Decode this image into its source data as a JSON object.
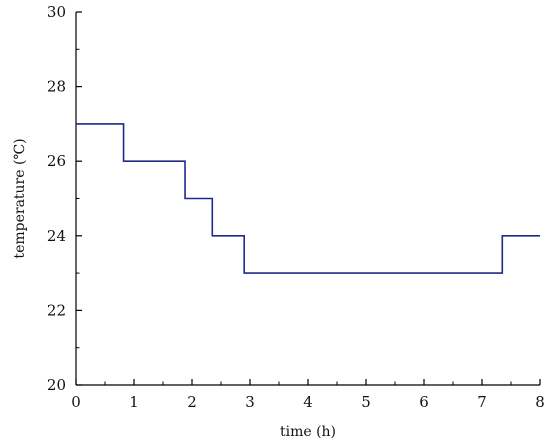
{
  "chart_data": {
    "type": "line",
    "step": true,
    "title": "",
    "xlabel": "time (h)",
    "ylabel": "temperature (℃)",
    "xlim": [
      0,
      8
    ],
    "ylim": [
      20,
      30
    ],
    "xticks": [
      0,
      1,
      2,
      3,
      4,
      5,
      6,
      7,
      8
    ],
    "yticks": [
      20,
      22,
      24,
      26,
      28,
      30
    ],
    "grid": false,
    "series": [
      {
        "color": "#1f2a8c",
        "points": [
          [
            0,
            27
          ],
          [
            0.82,
            27
          ],
          [
            0.82,
            26
          ],
          [
            1.88,
            26
          ],
          [
            1.88,
            25
          ],
          [
            2.35,
            25
          ],
          [
            2.35,
            24
          ],
          [
            2.9,
            24
          ],
          [
            2.9,
            23
          ],
          [
            7.35,
            23
          ],
          [
            7.35,
            24
          ],
          [
            8,
            24
          ]
        ]
      }
    ]
  }
}
